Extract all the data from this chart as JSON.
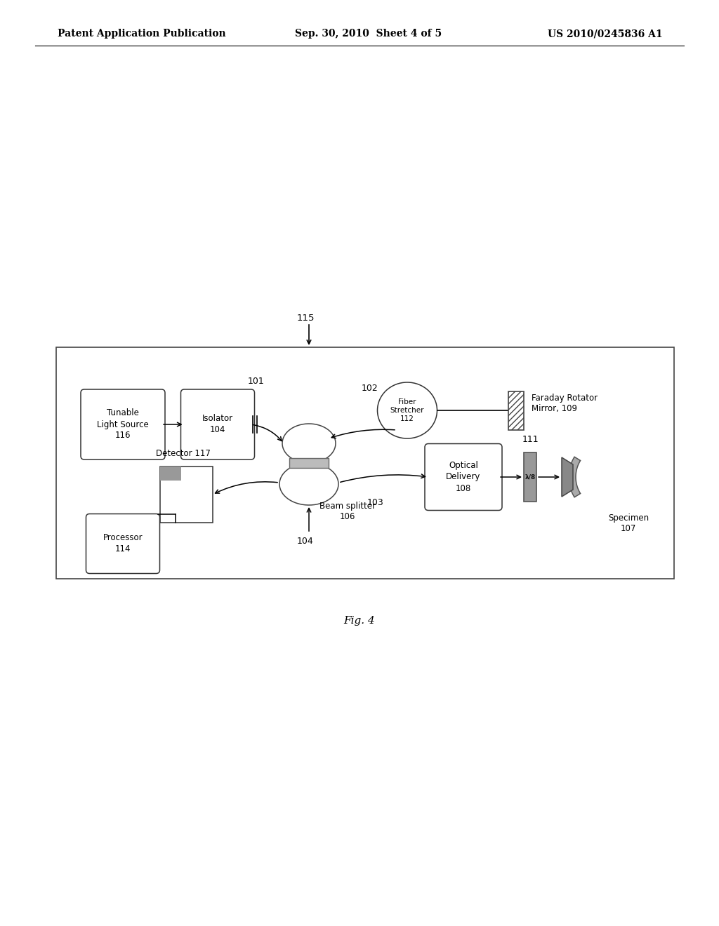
{
  "bg_color": "#ffffff",
  "header_left": "Patent Application Publication",
  "header_center": "Sep. 30, 2010  Sheet 4 of 5",
  "header_right": "US 2010/0245836 A1",
  "fig_label": "Fig. 4"
}
